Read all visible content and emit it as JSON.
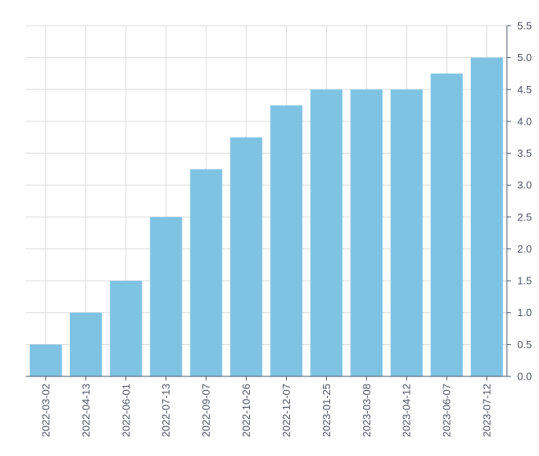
{
  "chart_data": {
    "type": "bar",
    "categories": [
      "2022-03-02",
      "2022-04-13",
      "2022-06-01",
      "2022-07-13",
      "2022-09-07",
      "2022-10-26",
      "2022-12-07",
      "2023-01-25",
      "2023-03-08",
      "2023-04-12",
      "2023-06-07",
      "2023-07-12"
    ],
    "values": [
      0.5,
      1.0,
      1.5,
      2.5,
      3.25,
      3.75,
      4.25,
      4.5,
      4.5,
      4.5,
      4.75,
      5.0
    ],
    "y_ticks": [
      "0.0",
      "0.5",
      "1.0",
      "1.5",
      "2.0",
      "2.5",
      "3.0",
      "3.5",
      "4.0",
      "4.5",
      "5.0",
      "5.5"
    ],
    "ylim": [
      0,
      5.5
    ],
    "y_axis_side": "right",
    "x_tick_rotation": "vertical",
    "grid": true,
    "title": "",
    "xlabel": "",
    "ylabel": "",
    "colors": {
      "bar": "#7fc3e3",
      "grid": "#dcdcdc",
      "axis": "#4d5563",
      "text": "#4d5563"
    }
  }
}
